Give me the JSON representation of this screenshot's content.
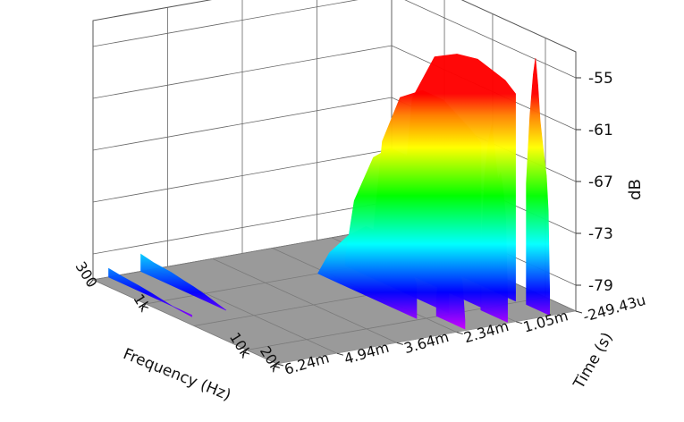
{
  "chart_data": {
    "type": "area",
    "title": "",
    "z_axis": {
      "label": "dB",
      "ticks": [
        "-55",
        "-61",
        "-67",
        "-73",
        "-79"
      ],
      "range": [
        -82,
        -52
      ]
    },
    "x_axis": {
      "label": "Frequency (Hz)",
      "scale": "log",
      "ticks": [
        "300",
        "1k",
        "10k",
        "20k"
      ],
      "range": [
        300,
        20000
      ]
    },
    "y_axis": {
      "label": "Time (s)",
      "ticks": [
        "-249.43u",
        "1.05m",
        "2.34m",
        "3.64m",
        "4.94m",
        "6.24m"
      ],
      "range": [
        -0.00025,
        0.00624
      ]
    },
    "grid": true,
    "floor_color": "#9a9a9a",
    "colormap": [
      "#ff00ff",
      "#0000ff",
      "#00ffff",
      "#00ff00",
      "#ffff00",
      "#ff0000"
    ],
    "surfaces": [
      {
        "region": "plateau",
        "t": 0.00035,
        "f": [
          700,
          900,
          1500,
          2500,
          4000,
          5500,
          7500,
          9500
        ],
        "db": [
          -79,
          -64,
          -58,
          -56.5,
          -56,
          -56.5,
          -57,
          -58
        ]
      },
      {
        "region": "plateau",
        "t": 0.0011,
        "f": [
          800,
          1000,
          1500,
          2500,
          4000,
          5500,
          7500,
          9500
        ],
        "db": [
          -80,
          -68,
          -62,
          -60,
          -60,
          -61,
          -62,
          -63
        ]
      },
      {
        "region": "plateau",
        "t": 0.0018,
        "f": [
          900,
          1100,
          1700,
          2500,
          4000,
          5500,
          7500,
          9500
        ],
        "db": [
          -81,
          -74,
          -68,
          -66,
          -66,
          -67,
          -68,
          -70
        ]
      },
      {
        "region": "plateau",
        "t": 0.0025,
        "f": [
          1000,
          1300,
          2000,
          3000,
          4500,
          6000,
          8000,
          9500
        ],
        "db": [
          -82,
          -79,
          -76,
          -74,
          -74,
          -75,
          -76,
          -78
        ]
      },
      {
        "region": "peaks",
        "t": 0.0003,
        "f": [
          11500,
          12500,
          13500,
          14200,
          15000,
          15800,
          16500,
          17300,
          18200,
          19000,
          19600
        ],
        "db": [
          -68,
          -60,
          -55,
          -53,
          -56,
          -60,
          -62,
          -64,
          -66,
          -70,
          -79
        ]
      },
      {
        "region": "peaks",
        "t": 0.0012,
        "f": [
          10500,
          11500,
          12500,
          13500,
          14500,
          15500,
          16500,
          17500,
          18500,
          19300
        ],
        "db": [
          -75,
          -66,
          -62,
          -60,
          -63,
          -66,
          -65,
          -67,
          -70,
          -79
        ]
      },
      {
        "region": "peaks",
        "t": 0.0021,
        "f": [
          9800,
          10800,
          11800,
          12800,
          13800,
          14800,
          15800,
          16800,
          17800,
          18800
        ],
        "db": [
          -80,
          -74,
          -70,
          -69,
          -72,
          -74,
          -73,
          -75,
          -77,
          -81
        ]
      },
      {
        "region": "low",
        "t": 0.0052,
        "f": [
          300,
          400,
          600,
          800,
          1000,
          1300,
          1700,
          2100
        ],
        "db": [
          -80,
          -80.3,
          -80.5,
          -80.8,
          -81,
          -81.3,
          -81.7,
          -82
        ]
      },
      {
        "region": "low",
        "t": 0.0059,
        "f": [
          300,
          400,
          600,
          800,
          1000,
          1300,
          1600,
          2000
        ],
        "db": [
          -81,
          -81.2,
          -81.4,
          -81.6,
          -81.8,
          -82,
          -82.1,
          -82.2
        ]
      }
    ]
  }
}
